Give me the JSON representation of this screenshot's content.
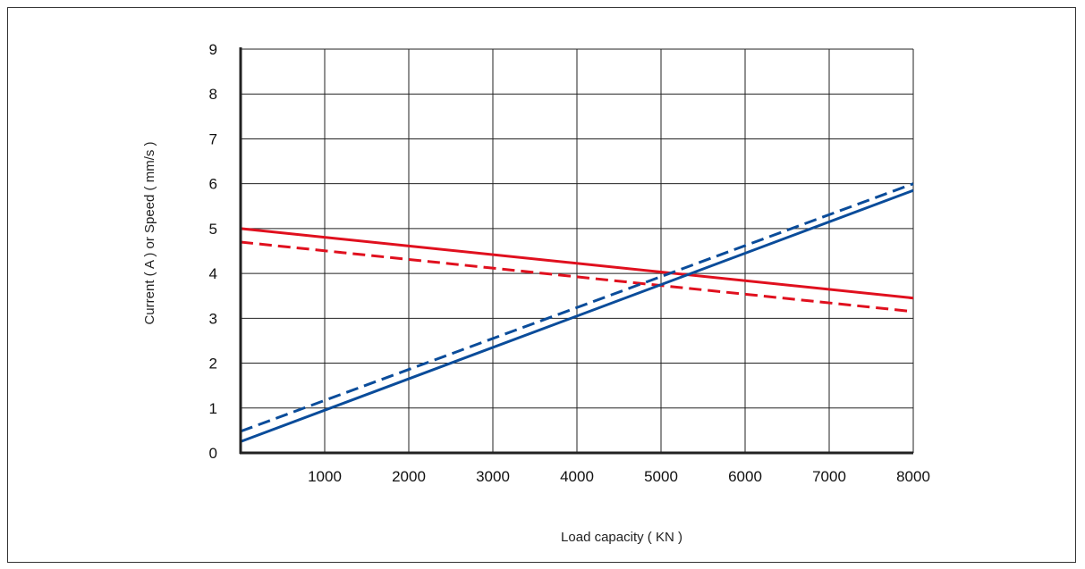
{
  "chart_data": {
    "type": "line",
    "title": "",
    "xlabel": "Load capacity ( KN )",
    "ylabel": "Current ( A ) or Speed ( mm/s )",
    "xlim": [
      0,
      8000
    ],
    "ylim": [
      0,
      9
    ],
    "x_ticks": [
      1000,
      2000,
      3000,
      4000,
      5000,
      6000,
      7000,
      8000
    ],
    "y_ticks": [
      0,
      1,
      2,
      3,
      4,
      5,
      6,
      7,
      8,
      9
    ],
    "x_tick_labels": [
      "1000",
      "2000",
      "3000",
      "4000",
      "5000",
      "6000",
      "7000",
      "8000"
    ],
    "y_tick_labels": [
      "0",
      "1",
      "2",
      "3",
      "4",
      "5",
      "6",
      "7",
      "8",
      "9"
    ],
    "grid": true,
    "legend": "none",
    "series": [
      {
        "color": "#e0101e",
        "style": "solid",
        "x": [
          0,
          8000
        ],
        "y": [
          5.0,
          3.45
        ]
      },
      {
        "color": "#e0101e",
        "style": "dashed",
        "x": [
          0,
          8000
        ],
        "y": [
          4.7,
          3.15
        ]
      },
      {
        "color": "#0a4c9a",
        "style": "solid",
        "x": [
          0,
          8000
        ],
        "y": [
          0.25,
          5.85
        ]
      },
      {
        "color": "#0a4c9a",
        "style": "dashed",
        "x": [
          0,
          8000
        ],
        "y": [
          0.48,
          6.0
        ]
      }
    ]
  }
}
